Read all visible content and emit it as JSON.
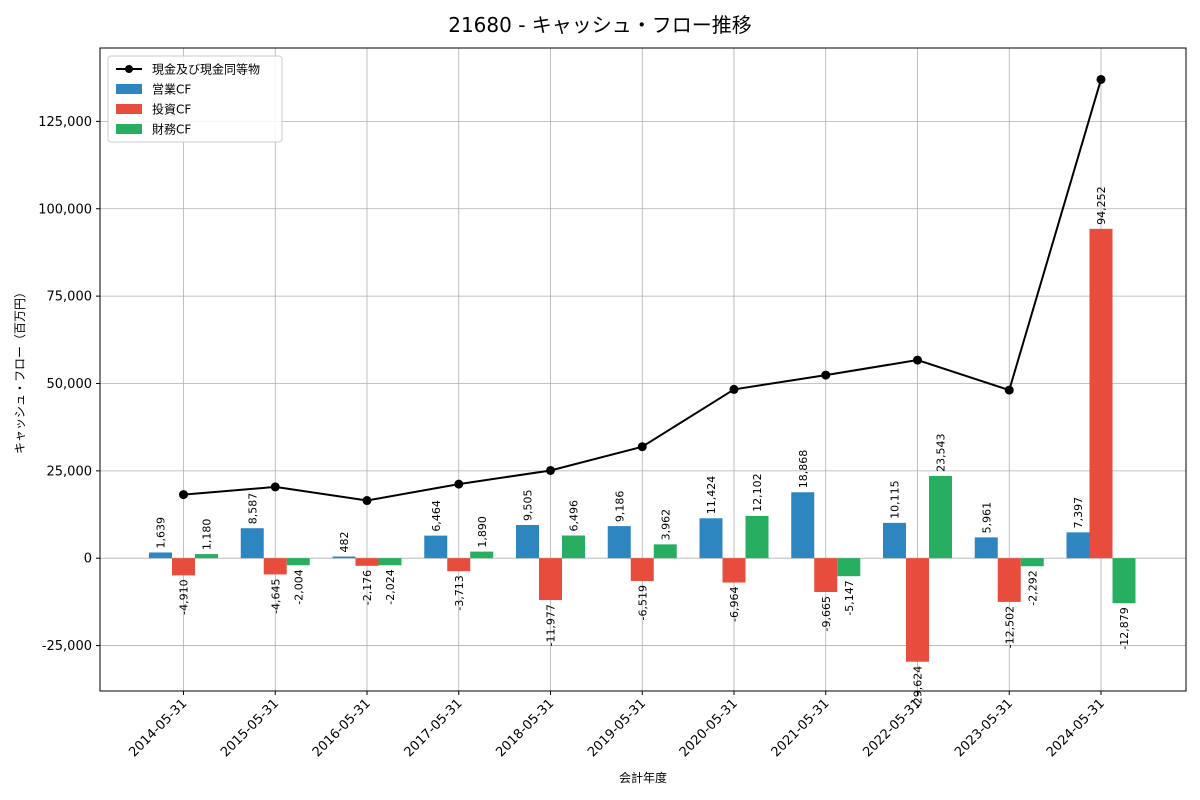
{
  "chart_data": {
    "type": "bar",
    "title": "21680 - キャッシュ・フロー推移",
    "xlabel": "会計年度",
    "ylabel": "キャッシュ・フロー（百万円）",
    "categories": [
      "2014-05-31",
      "2015-05-31",
      "2016-05-31",
      "2017-05-31",
      "2018-05-31",
      "2019-05-31",
      "2020-05-31",
      "2021-05-31",
      "2022-05-31",
      "2023-05-31",
      "2024-05-31"
    ],
    "ylim": [
      -38000,
      146000
    ],
    "yticks": [
      -25000,
      0,
      25000,
      50000,
      75000,
      100000,
      125000
    ],
    "ytick_labels": [
      "-25,000",
      "0",
      "25,000",
      "50,000",
      "75,000",
      "100,000",
      "125,000"
    ],
    "grid": true,
    "legend_position": "top-left",
    "series": [
      {
        "name": "営業CF",
        "kind": "bar",
        "color": "#2e86c1",
        "values": [
          1639,
          8587,
          482,
          6464,
          9505,
          9186,
          11424,
          18868,
          10115,
          5961,
          7397
        ],
        "labels": [
          "1,639",
          "8,587",
          "482",
          "6,464",
          "9,505",
          "9,186",
          "11,424",
          "18,868",
          "10,115",
          "5,961",
          "7,397"
        ]
      },
      {
        "name": "投資CF",
        "kind": "bar",
        "color": "#e74c3c",
        "values": [
          -4910,
          -4645,
          -2176,
          -3713,
          -11977,
          -6519,
          -6964,
          -9665,
          -29624,
          -12502,
          94252
        ],
        "labels": [
          "-4,910",
          "-4,645",
          "-2,176",
          "-3,713",
          "-11,977",
          "-6,519",
          "-6,964",
          "-9,665",
          "-29,624",
          "-12,502",
          "94,252"
        ]
      },
      {
        "name": "財務CF",
        "kind": "bar",
        "color": "#27ae60",
        "values": [
          1180,
          -2004,
          -2024,
          1890,
          6496,
          3962,
          12102,
          -5147,
          23543,
          -2292,
          -12879
        ],
        "labels": [
          "1,180",
          "-2,004",
          "-2,024",
          "1,890",
          "6,496",
          "3,962",
          "12,102",
          "-5,147",
          "23,543",
          "-2,292",
          "-12,879"
        ]
      },
      {
        "name": "現金及び現金同等物",
        "kind": "line",
        "color": "#000000",
        "values": [
          18200,
          20400,
          16500,
          21200,
          25100,
          31900,
          48300,
          52400,
          56700,
          48100,
          137000
        ]
      }
    ]
  }
}
